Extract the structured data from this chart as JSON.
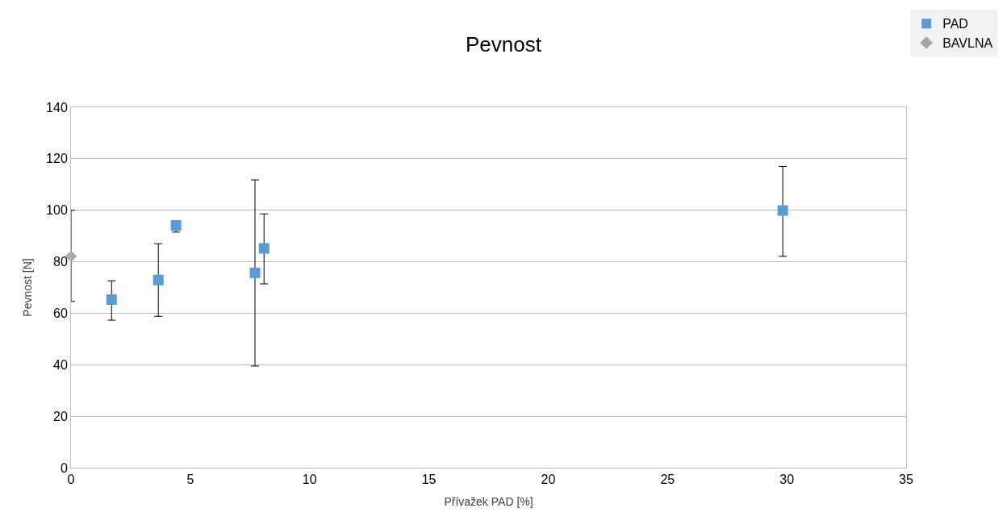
{
  "chart_data": {
    "type": "scatter",
    "title": "Pevnost",
    "xlabel": "Přívažek PAD [%]",
    "ylabel": "Pevnost [N]",
    "xlim": [
      0,
      35
    ],
    "xticks": [
      0,
      5,
      10,
      15,
      20,
      25,
      30,
      35
    ],
    "ylim": [
      0,
      140
    ],
    "yticks": [
      0,
      20,
      40,
      60,
      80,
      100,
      120,
      140
    ],
    "grid": "y",
    "legend": "top right",
    "series": [
      {
        "name": "PAD",
        "color": "#5b9bd5",
        "marker": "square",
        "x": [
          1.7,
          3.66,
          4.4,
          7.71,
          8.09,
          29.83
        ],
        "values": [
          65.3,
          72.9,
          94.1,
          75.7,
          85.2,
          99.9
        ],
        "errors": [
          [
            57.3,
            72.6
          ],
          [
            58.8,
            87
          ],
          [
            91.5,
            96
          ],
          [
            39.5,
            111.8
          ],
          [
            71.4,
            98.6
          ],
          [
            82.1,
            117
          ]
        ]
      },
      {
        "name": "BAVLNA",
        "color": "#a5a5a5",
        "marker": "diamond",
        "x": [
          0
        ],
        "values": [
          82.1
        ],
        "errors": [
          [
            64.6,
            100
          ]
        ]
      }
    ]
  }
}
